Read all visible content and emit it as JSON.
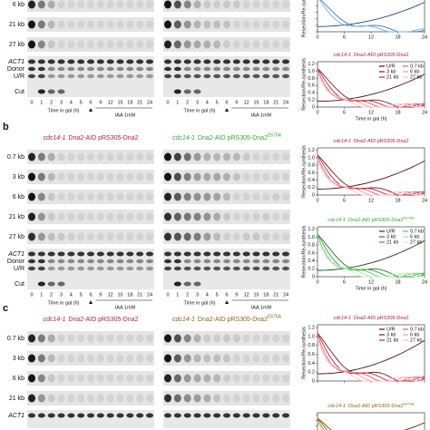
{
  "common": {
    "lanes": [
      "0",
      "1",
      "2",
      "3",
      "4",
      "5",
      "6",
      "9",
      "12",
      "15",
      "18",
      "21",
      "24"
    ],
    "time_label": "Time in gal (h)",
    "iaa": "IAA 1mM",
    "act1": "ACT1",
    "donor": "Donor",
    "ur": "U/R",
    "cut": "Cut",
    "y_label": "Resection/Re-synthesis",
    "x_ticks": [
      "0",
      "6",
      "12",
      "18",
      "24"
    ],
    "y_ticks": [
      "0",
      "0.2",
      "0.4",
      "0.6",
      "0.8",
      "1.0",
      "1.2"
    ]
  },
  "strain": {
    "genotype": "cdc14-1",
    "construct": "Dna2-AID pRS305-Dna2",
    "mutation": "E675A"
  },
  "legend": [
    "U/R",
    "3 kb",
    "21 kb",
    "0.7 kb",
    "6 kb",
    "27 kb"
  ],
  "panels": [
    {
      "rows": [
        "6 kb",
        "21 kb",
        "27 kb"
      ]
    },
    {
      "label": "b",
      "rows": [
        "0.7 kb",
        "3 kb",
        "6 kb",
        "21 kb",
        "27 kb"
      ]
    },
    {
      "label": "c",
      "rows": [
        "0.7 kb",
        "3 kb",
        "6 kb",
        "21 kb"
      ]
    }
  ]
}
